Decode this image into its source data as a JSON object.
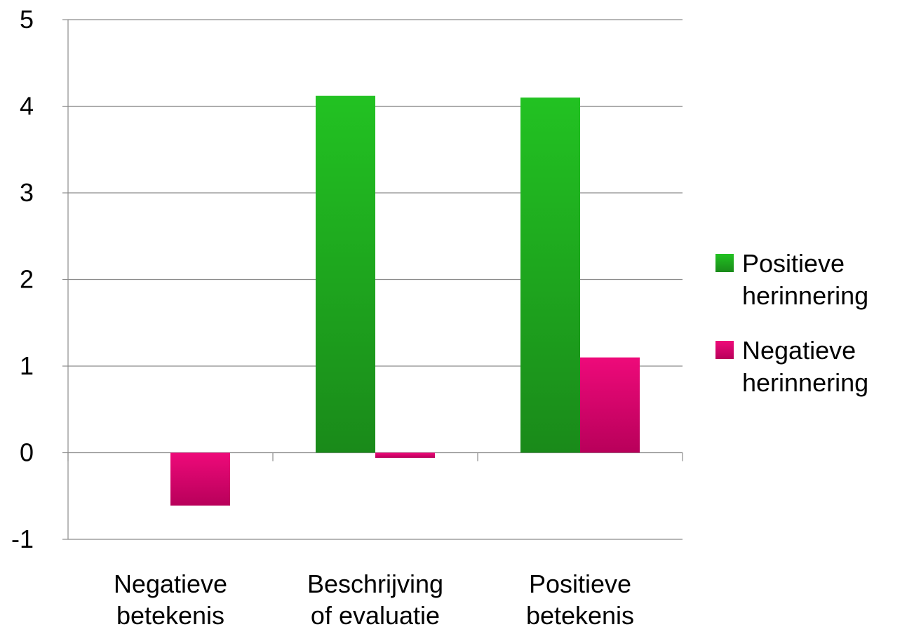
{
  "chart_data": {
    "type": "bar",
    "categories": [
      [
        "Negatieve",
        "betekenis"
      ],
      [
        "Beschrijving",
        "of evaluatie"
      ],
      [
        "Positieve",
        "betekenis"
      ]
    ],
    "series": [
      {
        "name": "Positieve herinnering",
        "name_lines": [
          "Positieve",
          "herinnering"
        ],
        "color": "#22b522",
        "values": [
          0,
          4.12,
          4.1
        ]
      },
      {
        "name": "Negatieve herinnering",
        "name_lines": [
          "Negatieve",
          "herinnering"
        ],
        "color": "#e5006e",
        "values": [
          -0.61,
          -0.06,
          1.1
        ]
      }
    ],
    "yticks": [
      "-1",
      "0",
      "1",
      "2",
      "3",
      "4",
      "5"
    ],
    "ylim": [
      -1,
      5
    ],
    "grid": true,
    "legend": "right"
  }
}
